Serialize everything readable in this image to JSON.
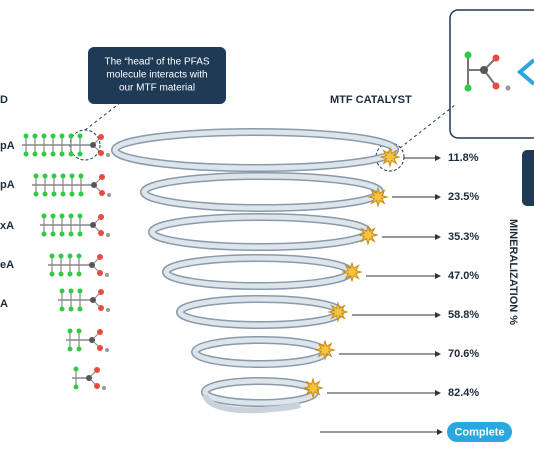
{
  "callout": {
    "lines": [
      "The “head” of the PFAS",
      "molecule interacts with",
      "our MTF material"
    ]
  },
  "catalyst_label": "MTF CATALYST",
  "axis_label": "MINERALIZATION %",
  "compounds": [
    "D",
    "pA",
    "pA",
    "xA",
    "eA",
    "A"
  ],
  "steps": [
    "11.8%",
    "23.5%",
    "35.3%",
    "47.0%",
    "58.8%",
    "70.6%",
    "82.4%"
  ],
  "final": "Complete"
}
